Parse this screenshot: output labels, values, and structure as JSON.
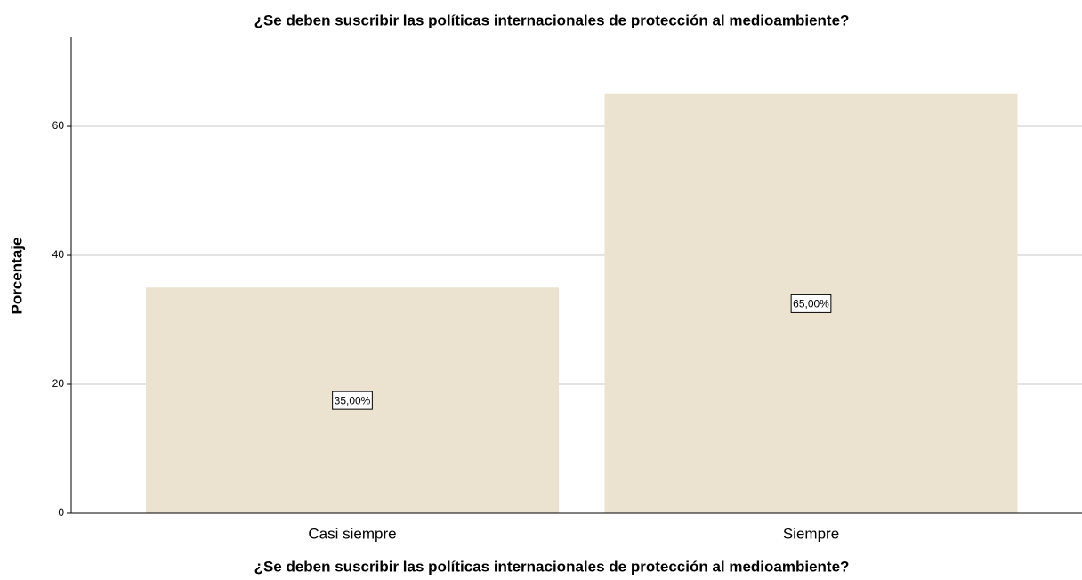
{
  "chart_data": {
    "type": "bar",
    "title": "¿Se deben suscribir las políticas internacionales de protección al medioambiente?",
    "x_label": "¿Se deben suscribir las políticas internacionales de protección al medioambiente?",
    "y_label": "Porcentaje",
    "categories": [
      "Casi siempre",
      "Siempre"
    ],
    "values": [
      35,
      65
    ],
    "value_labels": [
      "35,00%",
      "65,00%"
    ],
    "color": "#ebe3cf",
    "ylim": [
      0,
      73.8
    ],
    "yticks": [
      0,
      20,
      40,
      60
    ],
    "grid": true
  }
}
